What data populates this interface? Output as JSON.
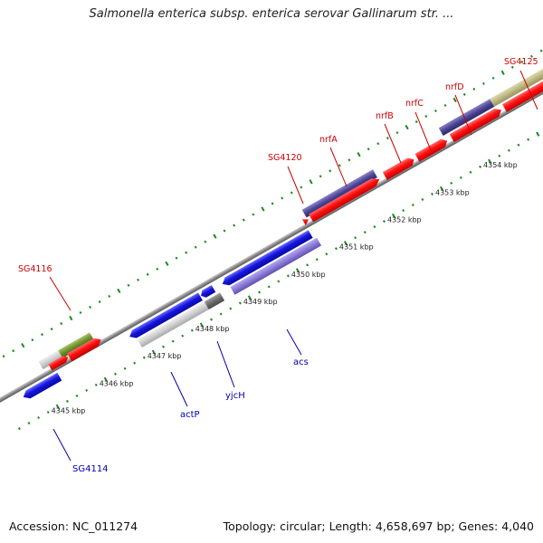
{
  "title": "Salmonella enterica subsp. enterica serovar Gallinarum str. ...",
  "footer": {
    "accession": "Accession: NC_011274",
    "summary": "Topology: circular; Length: 4,658,697 bp; Genes: 4,040"
  },
  "colors": {
    "forward": "#ff0000",
    "reverse": "#1a1ae6",
    "purple_dark": "#4b4496",
    "purple_light": "#8a7ad6",
    "olive": "#6e8f2a",
    "khaki": "#bdb883",
    "gray_light": "#c8c8c8",
    "gray_dark": "#707070",
    "tick": "#1c8a1c",
    "backbone": "#8a8a8a",
    "label_top": "#cc0000",
    "label_bottom": "#0000aa"
  },
  "kbp_labels": [
    "4345 kbp",
    "4346 kbp",
    "4347 kbp",
    "4348 kbp",
    "4349 kbp",
    "4350 kbp",
    "4351 kbp",
    "4352 kbp",
    "4353 kbp",
    "4354 kbp"
  ],
  "top_labels": [
    "SG4116",
    "SG4120",
    "nrfA",
    "nrfB",
    "nrfC",
    "nrfD",
    "SG4125"
  ],
  "bottom_labels": [
    "SG4114",
    "actP",
    "yjcH",
    "acs"
  ]
}
